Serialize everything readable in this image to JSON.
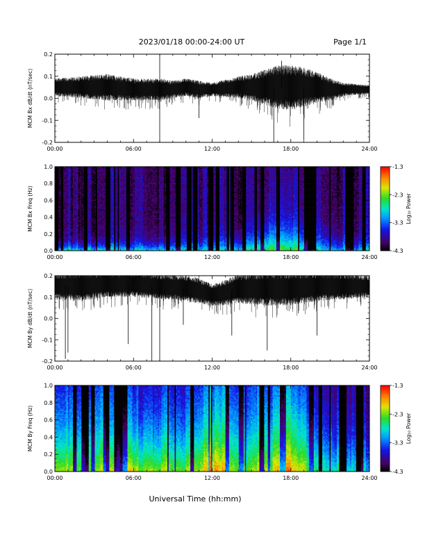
{
  "header": {
    "title": "2023/01/18  00:00-24:00 UT",
    "page": "Page 1/1"
  },
  "x_axis_label": "Universal Time (hh:mm)",
  "colorbar": {
    "label": "Log₁₀ Power",
    "ticks": [
      "-1.3",
      "-2.3",
      "-3.3",
      "-4.3"
    ],
    "range": [
      -4.3,
      -1.3
    ]
  },
  "chart_data": [
    {
      "type": "line",
      "ylabel": "MCM Bx dB/dt (nT/sec)",
      "xlim": [
        0,
        24
      ],
      "ylim": [
        -0.2,
        0.2
      ],
      "x_ticks": [
        "00:00",
        "06:00",
        "12:00",
        "18:00",
        "24:00"
      ],
      "y_ticks": [
        "0.2",
        "0.1",
        "0.0",
        "-0.1",
        "-0.2"
      ],
      "series": [
        {
          "x_hours": [
            0,
            2,
            4,
            6,
            7,
            8,
            9,
            10,
            11,
            12,
            14,
            15,
            16,
            17,
            18,
            19,
            20,
            21,
            22,
            24
          ],
          "mean": [
            0.05,
            0.05,
            0.05,
            0.04,
            0.04,
            0.04,
            0.04,
            0.05,
            0.04,
            0.04,
            0.05,
            0.05,
            0.05,
            0.05,
            0.05,
            0.05,
            0.05,
            0.04,
            0.04,
            0.04
          ],
          "amplitude": [
            0.04,
            0.05,
            0.06,
            0.05,
            0.05,
            0.05,
            0.04,
            0.04,
            0.04,
            0.03,
            0.05,
            0.06,
            0.08,
            0.1,
            0.1,
            0.09,
            0.07,
            0.05,
            0.03,
            0.02
          ],
          "spikes": [
            [
              8.0,
              -0.2
            ],
            [
              8.0,
              0.2
            ],
            [
              16.7,
              -0.2
            ],
            [
              19.0,
              -0.19
            ],
            [
              17.3,
              0.17
            ],
            [
              11.0,
              -0.09
            ]
          ]
        }
      ]
    },
    {
      "type": "heatmap",
      "ylabel": "MCM Bx Freq (Hz)",
      "xlim": [
        0,
        24
      ],
      "ylim": [
        0,
        1
      ],
      "x_ticks": [
        "00:00",
        "06:00",
        "12:00",
        "18:00",
        "24:00"
      ],
      "y_ticks": [
        "1.0",
        "0.8",
        "0.6",
        "0.4",
        "0.2",
        "0.0"
      ],
      "z_range": [
        -4.3,
        -1.3
      ],
      "surface": {
        "hour_nodes": [
          0,
          3,
          6,
          9,
          12,
          15,
          16,
          18,
          20,
          22,
          24
        ],
        "base_power": [
          -2.6,
          -2.7,
          -2.8,
          -2.8,
          -2.9,
          -2.7,
          -2.4,
          -2.5,
          -2.8,
          -3.0,
          -2.9
        ],
        "decay_scale_hz": [
          0.06,
          0.07,
          0.08,
          0.09,
          0.1,
          0.14,
          0.22,
          0.24,
          0.16,
          0.12,
          0.08
        ],
        "floor_power": -4.0
      }
    },
    {
      "type": "line",
      "ylabel": "MCM By dB/dt (nT/sec)",
      "xlim": [
        0,
        24
      ],
      "ylim": [
        -0.2,
        0.2
      ],
      "x_ticks": [
        "00:00",
        "06:00",
        "12:00",
        "18:00",
        "24:00"
      ],
      "y_ticks": [
        "0.2",
        "0.1",
        "0.0",
        "-0.1",
        "-0.2"
      ],
      "series": [
        {
          "x_hours": [
            0,
            2,
            4,
            6,
            8,
            10,
            11,
            12,
            13,
            14,
            16,
            18,
            20,
            22,
            24
          ],
          "mean": [
            0.15,
            0.15,
            0.16,
            0.16,
            0.15,
            0.14,
            0.13,
            0.11,
            0.12,
            0.14,
            0.14,
            0.14,
            0.15,
            0.15,
            0.15
          ],
          "amplitude": [
            0.06,
            0.07,
            0.06,
            0.06,
            0.06,
            0.06,
            0.06,
            0.05,
            0.06,
            0.07,
            0.08,
            0.08,
            0.07,
            0.06,
            0.05
          ],
          "spikes": [
            [
              0.8,
              -0.19
            ],
            [
              1.0,
              -0.16
            ],
            [
              7.4,
              -0.2
            ],
            [
              8.0,
              -0.2
            ],
            [
              5.6,
              -0.12
            ],
            [
              9.8,
              -0.03
            ],
            [
              16.2,
              -0.15
            ],
            [
              13.5,
              -0.08
            ],
            [
              20.0,
              -0.08
            ]
          ]
        }
      ]
    },
    {
      "type": "heatmap",
      "ylabel": "MCM By Freq (Hz)",
      "xlim": [
        0,
        24
      ],
      "ylim": [
        0,
        1
      ],
      "x_ticks": [
        "00:00",
        "06:00",
        "12:00",
        "18:00",
        "24:00"
      ],
      "y_ticks": [
        "1.0",
        "0.8",
        "0.6",
        "0.4",
        "0.2",
        "0.0"
      ],
      "z_range": [
        -4.3,
        -1.3
      ],
      "surface": {
        "hour_nodes": [
          0,
          3,
          6,
          9,
          11,
          12,
          13,
          15,
          17,
          18,
          19,
          21,
          24
        ],
        "base_power": [
          -2.2,
          -2.3,
          -2.1,
          -2.3,
          -2.2,
          -1.7,
          -2.1,
          -2.3,
          -2.0,
          -1.8,
          -2.2,
          -2.6,
          -2.9
        ],
        "decay_scale_hz": [
          0.7,
          0.7,
          0.6,
          0.6,
          0.7,
          0.9,
          0.8,
          0.7,
          0.8,
          0.9,
          0.7,
          0.5,
          0.35
        ],
        "floor_power": -3.9
      }
    }
  ]
}
